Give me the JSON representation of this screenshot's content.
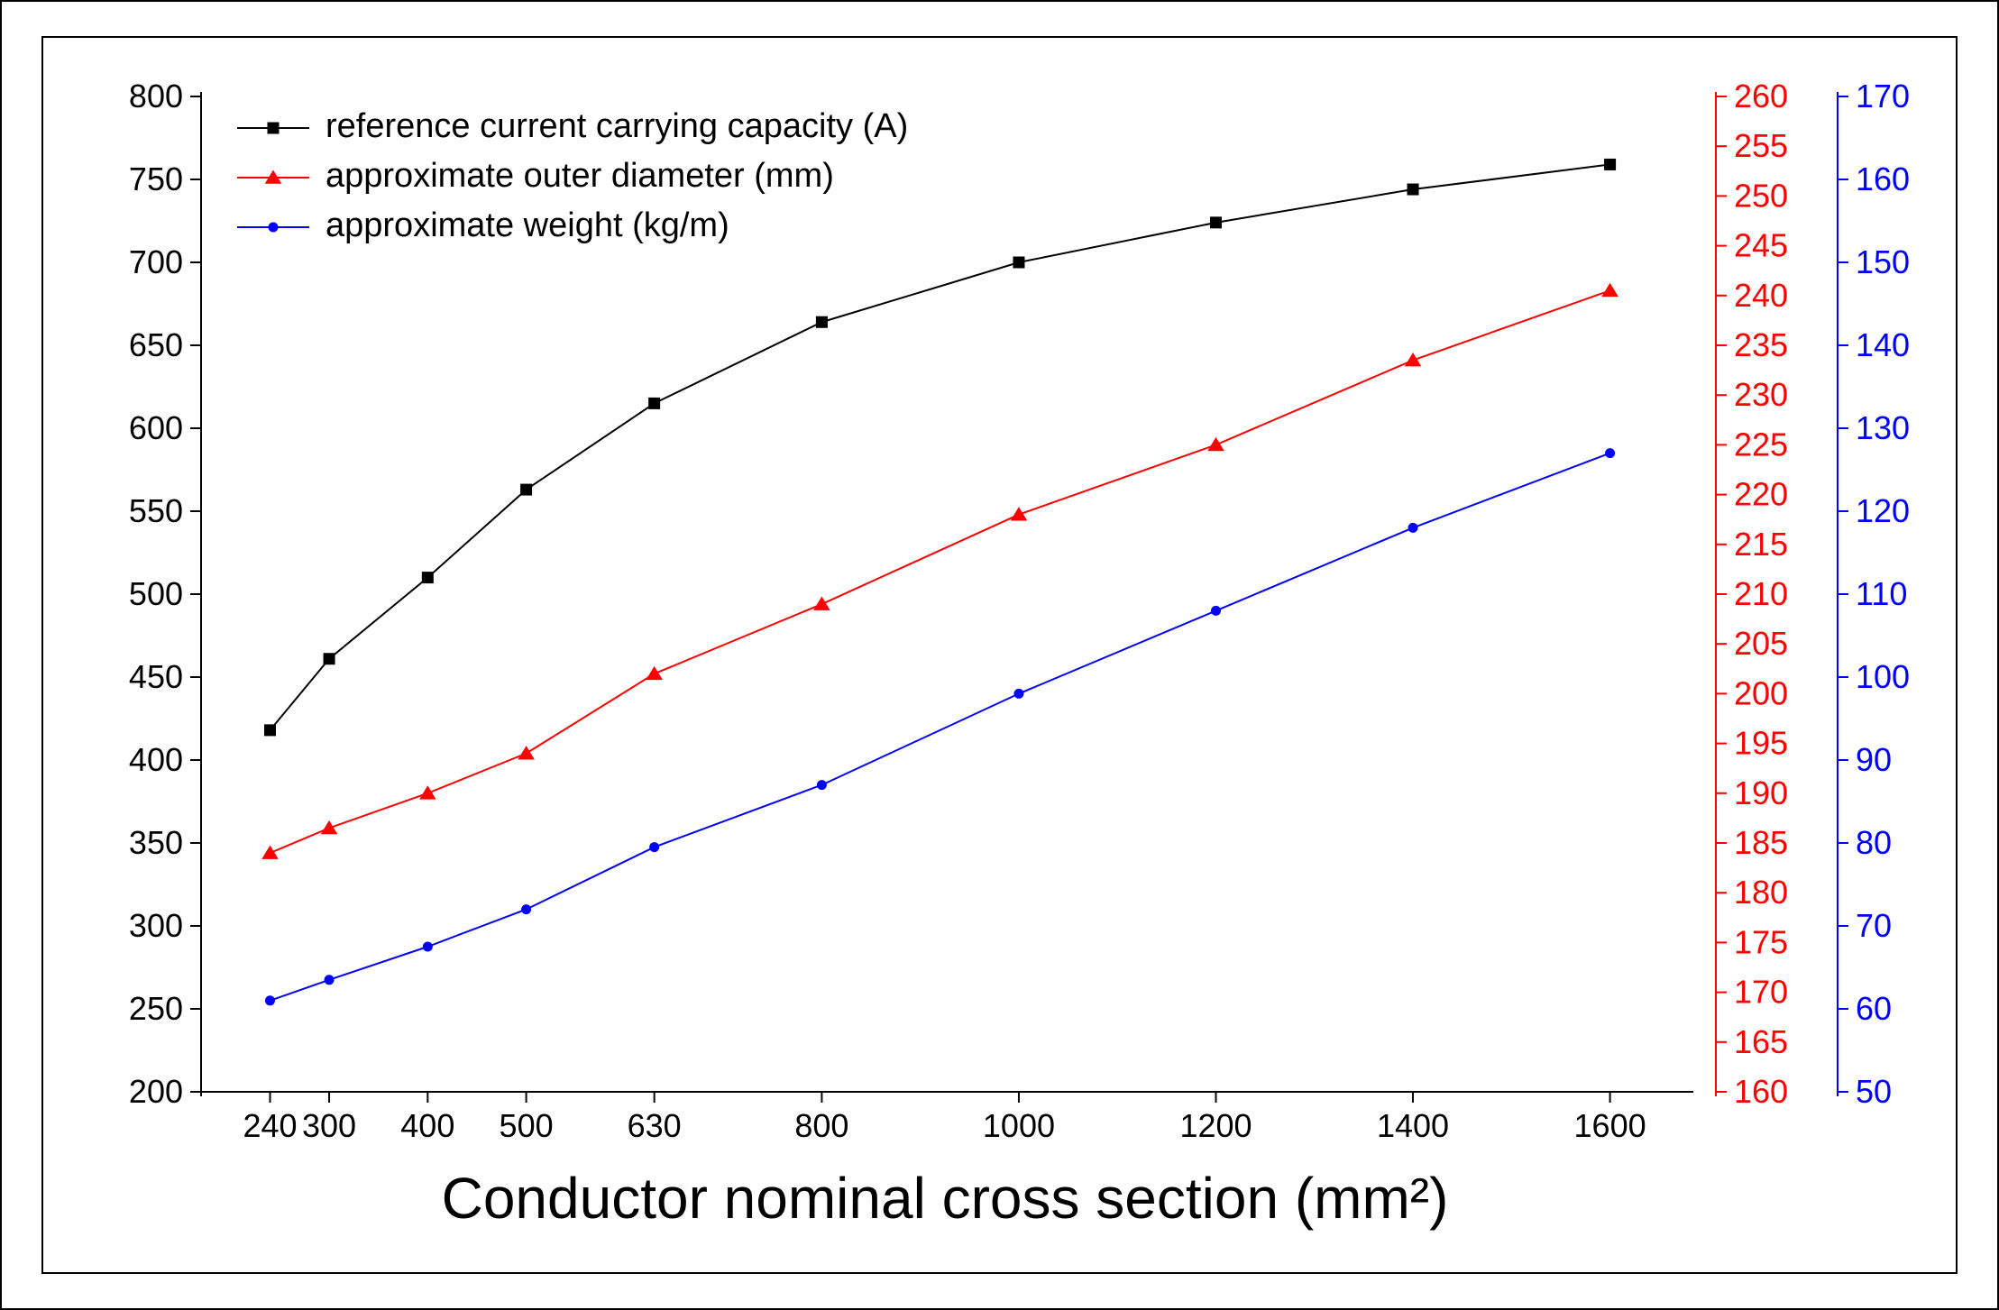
{
  "chart": {
    "type": "line-multi-axis",
    "background_color": "#ffffff",
    "frame_border_color": "#000000",
    "x_axis": {
      "label": "Conductor nominal cross section  (mm²)",
      "label_fontsize": 64,
      "label_color": "#000000",
      "tick_values": [
        240,
        300,
        400,
        500,
        630,
        800,
        1000,
        1200,
        1400,
        1600
      ],
      "tick_fontsize": 36,
      "axis_color": "#000000",
      "scale": "linear",
      "xlim": [
        170,
        1680
      ]
    },
    "left_axis": {
      "label": null,
      "ylim": [
        200,
        800
      ],
      "tick_step": 50,
      "tick_values": [
        200,
        250,
        300,
        350,
        400,
        450,
        500,
        550,
        600,
        650,
        700,
        750,
        800
      ],
      "color": "#000000",
      "tick_fontsize": 36
    },
    "right_axis_1": {
      "label": null,
      "ylim": [
        160,
        260
      ],
      "tick_step": 5,
      "tick_values": [
        160,
        165,
        170,
        175,
        180,
        185,
        190,
        195,
        200,
        205,
        210,
        215,
        220,
        225,
        230,
        235,
        240,
        245,
        250,
        255,
        260
      ],
      "color": "#ff0000",
      "tick_fontsize": 36
    },
    "right_axis_2": {
      "label": null,
      "ylim": [
        50,
        170
      ],
      "tick_step": 10,
      "tick_values": [
        50,
        60,
        70,
        80,
        90,
        100,
        110,
        120,
        130,
        140,
        150,
        160,
        170
      ],
      "color": "#0000ff",
      "tick_fontsize": 36
    },
    "series": [
      {
        "id": "current",
        "label": "reference current carrying capacity (A)",
        "axis": "left",
        "color": "#000000",
        "marker": "square",
        "marker_size": 12,
        "line_width": 2,
        "x": [
          240,
          300,
          400,
          500,
          630,
          800,
          1000,
          1200,
          1400,
          1600
        ],
        "y": [
          418,
          461,
          510,
          563,
          615,
          664,
          700,
          724,
          744,
          759
        ]
      },
      {
        "id": "diameter",
        "label": "approximate outer diameter (mm)",
        "axis": "right1",
        "color": "#ff0000",
        "marker": "triangle",
        "marker_size": 14,
        "line_width": 2,
        "x": [
          240,
          300,
          400,
          500,
          630,
          800,
          1000,
          1200,
          1400,
          1600
        ],
        "y": [
          184,
          186.5,
          190,
          194,
          202,
          209,
          218,
          225,
          233.5,
          240.5
        ]
      },
      {
        "id": "weight",
        "label": "approximate weight (kg/m)",
        "axis": "right2",
        "color": "#0000ff",
        "marker": "circle",
        "marker_size": 10,
        "line_width": 2,
        "x": [
          240,
          300,
          400,
          500,
          630,
          800,
          1000,
          1200,
          1400,
          1600
        ],
        "y": [
          61,
          63.5,
          67.5,
          72,
          79.5,
          87,
          98,
          108,
          118,
          127
        ]
      }
    ],
    "legend": {
      "position": "upper-left-inside",
      "fontsize": 38,
      "line_length": 80
    }
  }
}
